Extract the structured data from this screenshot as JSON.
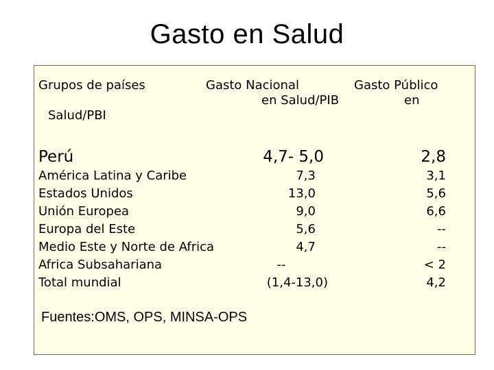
{
  "slide": {
    "title": "Gasto en Salud"
  },
  "table": {
    "header_groups": "Grupos de países",
    "header_nacional_line1": "Gasto Nacional",
    "header_nacional_line2": "en Salud/PIB",
    "header_publico_line1": "Gasto Público",
    "header_publico_line2": "en",
    "header_publico_line3": "Salud/PBI",
    "highlight_row": {
      "group": "Perú",
      "nacional": "4,7- 5,0",
      "publico": "2,8"
    },
    "rows": [
      {
        "group": "América Latina y Caribe",
        "nacional": "7,3",
        "publico": "3,1"
      },
      {
        "group": "Estados Unidos",
        "nacional": "13,0",
        "publico": "5,6"
      },
      {
        "group": "Unión Europea",
        "nacional": "9,0",
        "publico": "6,6"
      },
      {
        "group": "Europa del Este",
        "nacional": "5,6",
        "publico": "--"
      },
      {
        "group": "Medio Este y Norte de Africa",
        "nacional": "4,7",
        "publico": "--"
      },
      {
        "group": "Africa Subsahariana",
        "nacional": "--",
        "publico": "< 2"
      },
      {
        "group": "Total mundial",
        "nacional": "(1,4-13,0)",
        "publico": "4,2"
      }
    ]
  },
  "footer": {
    "source": "Fuentes:OMS, OPS, MINSA-OPS"
  }
}
